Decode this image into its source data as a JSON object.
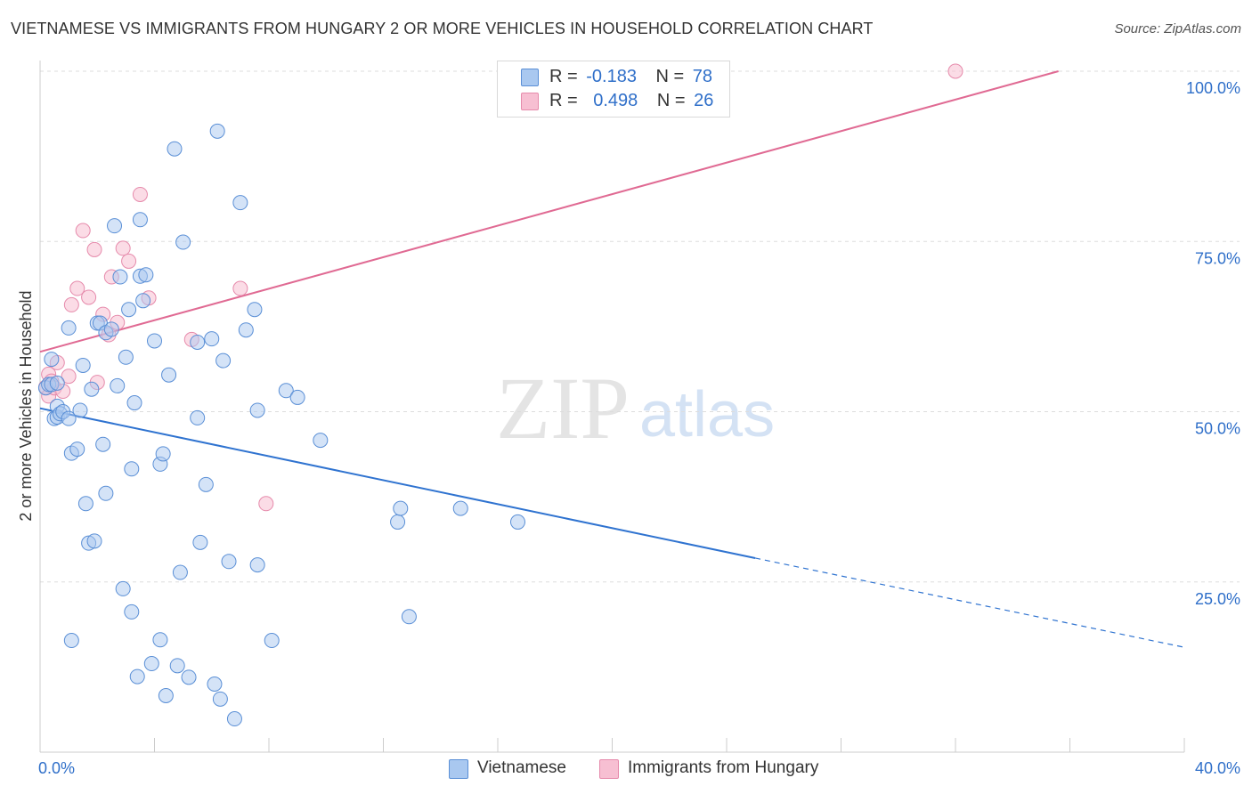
{
  "title": "VIETNAMESE VS IMMIGRANTS FROM HUNGARY 2 OR MORE VEHICLES IN HOUSEHOLD CORRELATION CHART",
  "source": "Source: ZipAtlas.com",
  "watermark": {
    "zip": "ZIP",
    "atlas": "atlas"
  },
  "legend": {
    "series1": {
      "r_label": "R =",
      "r_value": "-0.183",
      "n_label": "N =",
      "n_value": "78"
    },
    "series2": {
      "r_label": "R =",
      "r_value": "0.498",
      "n_label": "N =",
      "n_value": "26"
    }
  },
  "colors": {
    "blue_fill": "#a9c8f0",
    "blue_stroke": "#5a8fd6",
    "blue_line": "#2f73d0",
    "pink_fill": "#f7bfd2",
    "pink_stroke": "#e68aab",
    "pink_line": "#e06a93",
    "axis_label": "#2f6fc9",
    "grid": "#dddddd"
  },
  "chart_data": {
    "type": "scatter",
    "title": "VIETNAMESE VS IMMIGRANTS FROM HUNGARY 2 OR MORE VEHICLES IN HOUSEHOLD CORRELATION CHART",
    "xlabel": "",
    "ylabel": "2 or more Vehicles in Household",
    "xlim": [
      0,
      40
    ],
    "ylim": [
      0,
      100
    ],
    "x_tick_labels": [
      "0.0%",
      "40.0%"
    ],
    "y_ticks": [
      25,
      50,
      75,
      100
    ],
    "y_tick_labels": [
      "25.0%",
      "50.0%",
      "75.0%",
      "100.0%"
    ],
    "series": [
      {
        "name": "Vietnamese",
        "color": "#a9c8f0",
        "points": [
          [
            0.2,
            53.5
          ],
          [
            0.3,
            54
          ],
          [
            0.4,
            57.7
          ],
          [
            0.4,
            54
          ],
          [
            0.5,
            49
          ],
          [
            0.6,
            50.8
          ],
          [
            0.6,
            54.2
          ],
          [
            0.6,
            49.2
          ],
          [
            0.7,
            49.7
          ],
          [
            0.8,
            50
          ],
          [
            1.0,
            62.3
          ],
          [
            1.0,
            49
          ],
          [
            1.1,
            43.9
          ],
          [
            1.3,
            44.5
          ],
          [
            1.4,
            50.2
          ],
          [
            1.5,
            56.8
          ],
          [
            1.6,
            36.5
          ],
          [
            1.7,
            30.7
          ],
          [
            1.8,
            53.3
          ],
          [
            1.9,
            31
          ],
          [
            2.0,
            63
          ],
          [
            2.1,
            63
          ],
          [
            2.2,
            45.2
          ],
          [
            2.3,
            38
          ],
          [
            2.3,
            61.6
          ],
          [
            2.5,
            62.1
          ],
          [
            2.6,
            77.3
          ],
          [
            2.7,
            53.8
          ],
          [
            2.8,
            69.8
          ],
          [
            2.9,
            24
          ],
          [
            3.0,
            58
          ],
          [
            3.1,
            65
          ],
          [
            3.2,
            20.6
          ],
          [
            3.2,
            41.6
          ],
          [
            3.3,
            51.3
          ],
          [
            3.5,
            69.9
          ],
          [
            3.5,
            78.2
          ],
          [
            3.6,
            66.3
          ],
          [
            3.7,
            70.1
          ],
          [
            4.0,
            60.4
          ],
          [
            4.2,
            42.3
          ],
          [
            4.3,
            43.8
          ],
          [
            4.5,
            55.4
          ],
          [
            4.7,
            88.6
          ],
          [
            4.9,
            26.4
          ],
          [
            5.0,
            74.9
          ],
          [
            5.5,
            60.2
          ],
          [
            5.5,
            49.1
          ],
          [
            5.6,
            30.8
          ],
          [
            5.8,
            39.3
          ],
          [
            6.0,
            60.7
          ],
          [
            6.2,
            91.2
          ],
          [
            6.4,
            57.5
          ],
          [
            6.6,
            28
          ],
          [
            7.0,
            80.7
          ],
          [
            7.2,
            62
          ],
          [
            7.5,
            65
          ],
          [
            7.6,
            50.2
          ],
          [
            7.6,
            27.5
          ],
          [
            8.1,
            16.4
          ],
          [
            8.6,
            53.1
          ],
          [
            9.0,
            52.1
          ],
          [
            9.8,
            45.8
          ],
          [
            12.5,
            33.8
          ],
          [
            12.6,
            35.8
          ],
          [
            12.9,
            19.9
          ],
          [
            14.7,
            35.8
          ],
          [
            16.7,
            33.8
          ],
          [
            1.1,
            16.4
          ],
          [
            3.4,
            11.1
          ],
          [
            3.9,
            13
          ],
          [
            4.2,
            16.5
          ],
          [
            4.4,
            8.3
          ],
          [
            4.8,
            12.7
          ],
          [
            5.2,
            11
          ],
          [
            6.1,
            10
          ],
          [
            6.3,
            7.8
          ],
          [
            6.8,
            4.9
          ]
        ]
      },
      {
        "name": "Immigrants from Hungary",
        "color": "#f7bfd2",
        "points": [
          [
            0.2,
            53.6
          ],
          [
            0.3,
            52.3
          ],
          [
            0.3,
            55.5
          ],
          [
            0.4,
            54.5
          ],
          [
            0.5,
            53.5
          ],
          [
            0.6,
            57.2
          ],
          [
            0.8,
            53
          ],
          [
            1.0,
            55.2
          ],
          [
            1.1,
            65.7
          ],
          [
            1.3,
            68.1
          ],
          [
            1.5,
            76.6
          ],
          [
            1.7,
            66.8
          ],
          [
            1.9,
            73.8
          ],
          [
            2.0,
            54.3
          ],
          [
            2.2,
            64.3
          ],
          [
            2.4,
            61.3
          ],
          [
            2.5,
            69.8
          ],
          [
            2.7,
            63.1
          ],
          [
            2.9,
            74
          ],
          [
            3.1,
            72.1
          ],
          [
            3.5,
            81.9
          ],
          [
            3.8,
            66.7
          ],
          [
            5.3,
            60.6
          ],
          [
            7.0,
            68.1
          ],
          [
            7.9,
            36.5
          ],
          [
            32.0,
            100
          ]
        ]
      }
    ],
    "trend_lines": [
      {
        "series": "Vietnamese",
        "x_start": 0,
        "y_start": 50.5,
        "x_end": 25,
        "y_end": 28.5,
        "dashed_to_x": 40,
        "dashed_to_y": 15.4
      },
      {
        "series": "Immigrants from Hungary",
        "x_start": 0,
        "y_start": 58.8,
        "x_end": 35.6,
        "y_end": 100
      }
    ]
  },
  "bottom_legend": [
    "Vietnamese",
    "Immigrants from Hungary"
  ]
}
